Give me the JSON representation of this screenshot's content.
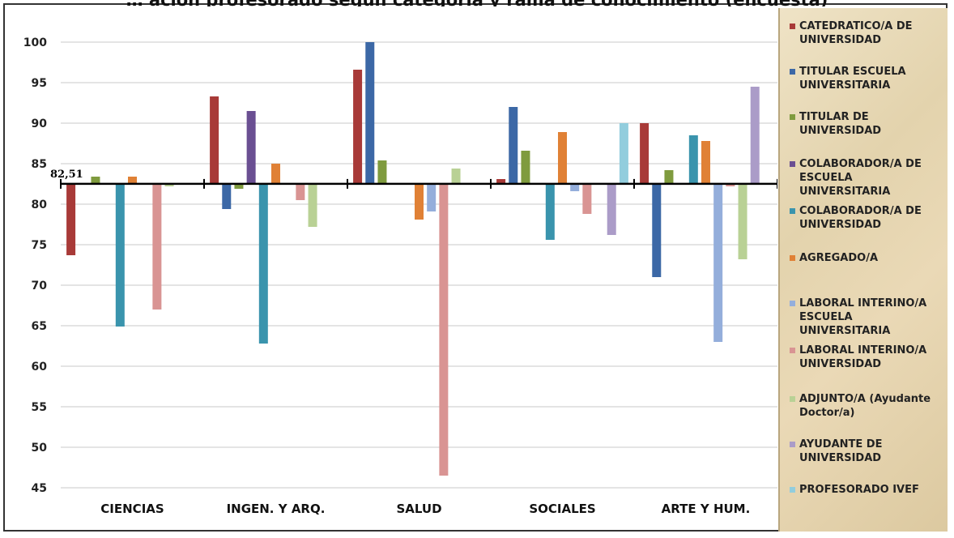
{
  "chart_data": {
    "type": "bar",
    "title": "… ación profesorado según categoría y rama de conocimiento (encuesta)",
    "categories": [
      "CIENCIAS",
      "INGEN. Y ARQ.",
      "SALUD",
      "SOCIALES",
      "ARTE Y HUM."
    ],
    "baseline": 82.51,
    "baseline_label": "82,51",
    "ylim": [
      45,
      100
    ],
    "yticks": [
      45,
      50,
      55,
      60,
      65,
      70,
      75,
      80,
      85,
      90,
      95,
      100
    ],
    "grid": true,
    "legend_position": "right",
    "series": [
      {
        "name": "CATEDRATICO/A DE UNIVERSIDAD",
        "color": "#a83a38",
        "values": [
          73.7,
          93.3,
          96.6,
          83.1,
          90.0
        ]
      },
      {
        "name": "TITULAR ESCUELA UNIVERSITARIA",
        "color": "#3c68a6",
        "values": [
          null,
          79.4,
          100.0,
          92.0,
          71.0
        ]
      },
      {
        "name": "TITULAR DE UNIVERSIDAD",
        "color": "#7f9b3e",
        "values": [
          83.4,
          81.9,
          85.4,
          86.6,
          84.2
        ]
      },
      {
        "name": "COLABORADOR/A DE ESCUELA UNIVERSITARIA",
        "color": "#6a4f92",
        "values": [
          null,
          91.5,
          null,
          null,
          null
        ]
      },
      {
        "name": "COLABORADOR/A DE UNIVERSIDAD",
        "color": "#3a94ad",
        "values": [
          64.9,
          62.8,
          null,
          75.6,
          88.5
        ]
      },
      {
        "name": "AGREGADO/A",
        "color": "#e08136",
        "values": [
          83.4,
          85.0,
          78.1,
          88.9,
          87.8
        ]
      },
      {
        "name": "LABORAL INTERINO/A ESCUELA UNIVERSITARIA",
        "color": "#94aedb",
        "values": [
          null,
          null,
          79.1,
          81.6,
          63.0
        ]
      },
      {
        "name": "LABORAL INTERINO/A UNIVERSIDAD",
        "color": "#d99493",
        "values": [
          67.0,
          80.5,
          46.5,
          78.8,
          82.2
        ]
      },
      {
        "name": "ADJUNTO/A (Ayudante Doctor/a)",
        "color": "#b9d195",
        "values": [
          82.2,
          77.2,
          84.4,
          null,
          73.2
        ]
      },
      {
        "name": "AYUDANTE DE UNIVERSIDAD",
        "color": "#ab9cc8",
        "values": [
          null,
          null,
          null,
          76.2,
          94.5
        ]
      },
      {
        "name": "PROFESORADO IVEF",
        "color": "#92cddd",
        "values": [
          null,
          null,
          null,
          90.0,
          null
        ]
      }
    ]
  }
}
